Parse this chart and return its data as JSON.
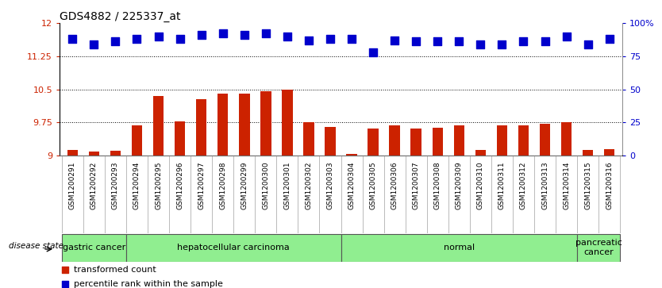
{
  "title": "GDS4882 / 225337_at",
  "samples": [
    "GSM1200291",
    "GSM1200292",
    "GSM1200293",
    "GSM1200294",
    "GSM1200295",
    "GSM1200296",
    "GSM1200297",
    "GSM1200298",
    "GSM1200299",
    "GSM1200300",
    "GSM1200301",
    "GSM1200302",
    "GSM1200303",
    "GSM1200304",
    "GSM1200305",
    "GSM1200306",
    "GSM1200307",
    "GSM1200308",
    "GSM1200309",
    "GSM1200310",
    "GSM1200311",
    "GSM1200312",
    "GSM1200313",
    "GSM1200314",
    "GSM1200315",
    "GSM1200316"
  ],
  "bar_values": [
    9.12,
    9.09,
    9.1,
    9.68,
    10.35,
    9.78,
    10.28,
    10.4,
    10.41,
    10.45,
    10.5,
    9.75,
    9.65,
    9.03,
    9.61,
    9.68,
    9.62,
    9.63,
    9.68,
    9.12,
    9.68,
    9.68,
    9.72,
    9.75,
    9.12,
    9.14
  ],
  "percentile_values": [
    88,
    84,
    86,
    88,
    90,
    88,
    91,
    92,
    91,
    92,
    90,
    87,
    88,
    88,
    78,
    87,
    86,
    86,
    86,
    84,
    84,
    86,
    86,
    90,
    84,
    88
  ],
  "group_boundaries": [
    [
      0,
      3,
      "gastric cancer"
    ],
    [
      3,
      13,
      "hepatocellular carcinoma"
    ],
    [
      13,
      24,
      "normal"
    ],
    [
      24,
      26,
      "pancreatic\ncancer"
    ]
  ],
  "ylim_left": [
    9.0,
    12.0
  ],
  "ylim_right": [
    0,
    100
  ],
  "yticks_left": [
    9.0,
    9.75,
    10.5,
    11.25,
    12.0
  ],
  "ytick_labels_left": [
    "9",
    "9.75",
    "10.5",
    "11.25",
    "12"
  ],
  "yticks_right": [
    0,
    25,
    50,
    75,
    100
  ],
  "ytick_labels_right": [
    "0",
    "25",
    "50",
    "75",
    "100%"
  ],
  "hlines": [
    9.75,
    10.5,
    11.25
  ],
  "bar_color": "#CC2200",
  "dot_color": "#0000CC",
  "bar_width": 0.5,
  "dot_size": 55,
  "dot_marker": "s",
  "left_tick_color": "#CC2200",
  "right_tick_color": "#0000CC",
  "grid_color": "#000000",
  "title_fontsize": 10,
  "tick_fontsize": 8,
  "xtick_fontsize": 6.5,
  "legend_fontsize": 8,
  "group_label_fontsize": 8,
  "group_color": "#90EE90",
  "group_border_color": "#555555",
  "xtick_bg_color": "#DDDDDD"
}
